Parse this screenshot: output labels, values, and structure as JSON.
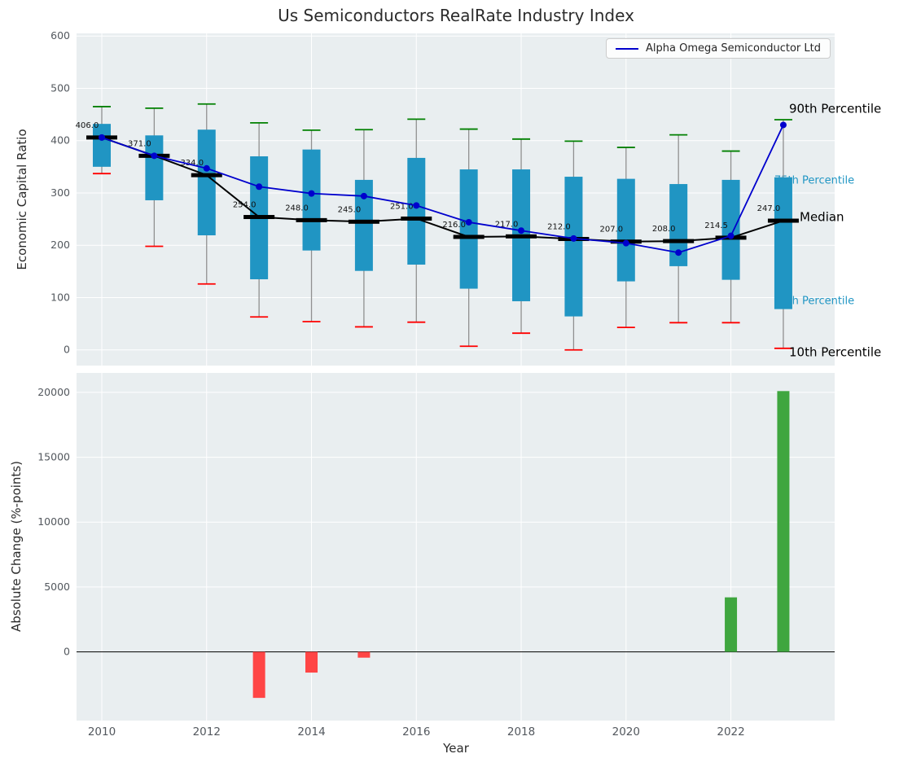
{
  "title": "Us Semiconductors RealRate Industry Index",
  "legend": {
    "label": "Alpha Omega Semiconductor Ltd"
  },
  "colors": {
    "company_line": "#0000cd",
    "box_fill": "#2095c3",
    "median": "#000000",
    "p90_cap": "#008000",
    "p10_cap": "#ff0000",
    "whisker": "#909090",
    "axes_background": "#e9eef0",
    "grid": "#ffffff",
    "bar_positive": "#3fa63f",
    "bar_negative": "#ff4545",
    "percentile_label_teal": "#2196c4",
    "tick_label": "#53585e",
    "zero_line": "#1a1a1a"
  },
  "chart_data": [
    {
      "type": "boxplot+line",
      "title": "Us Semiconductors RealRate Industry Index",
      "ylabel": "Economic Capital Ratio",
      "ylim": [
        -30,
        605
      ],
      "yticks": [
        0,
        100,
        200,
        300,
        400,
        500,
        600
      ],
      "xticks": [
        2010,
        2012,
        2014,
        2016,
        2018,
        2020,
        2022
      ],
      "grid": true,
      "legend_position": "upper right",
      "years": [
        2010,
        2011,
        2012,
        2013,
        2014,
        2015,
        2016,
        2017,
        2018,
        2019,
        2020,
        2021,
        2022,
        2023
      ],
      "p90": [
        465,
        462,
        470,
        434,
        420,
        421,
        441,
        422,
        403,
        399,
        387,
        411,
        380,
        440
      ],
      "p75": [
        432,
        410,
        421,
        370,
        383,
        325,
        367,
        345,
        345,
        331,
        327,
        317,
        325,
        330
      ],
      "median": [
        406,
        371,
        334,
        254,
        248,
        245,
        251,
        216,
        217,
        212,
        207,
        208,
        214.5,
        247
      ],
      "median_labels": [
        "406.0",
        "371.0",
        "334.0",
        "254.0",
        "248.0",
        "245.0",
        "251.0",
        "216.0",
        "217.0",
        "212.0",
        "207.0",
        "208.0",
        "214.5",
        "247.0"
      ],
      "p25": [
        350,
        286,
        219,
        135,
        190,
        151,
        163,
        117,
        93,
        64,
        131,
        160,
        134,
        78
      ],
      "p10": [
        337,
        198,
        126,
        63,
        54,
        44,
        53,
        7,
        32,
        0,
        43,
        52,
        52,
        3
      ],
      "series": [
        {
          "name": "Alpha Omega Semiconductor Ltd",
          "values": [
            406,
            371,
            347,
            312,
            299,
            294,
            276,
            244,
            228,
            213,
            204,
            186,
            218,
            430
          ]
        }
      ],
      "annotations": [
        {
          "text": "90th Percentile",
          "y": 460,
          "color": "#000000",
          "layer": "front"
        },
        {
          "text": "75th Percentile",
          "y": 323,
          "color": "#2196c4",
          "layer": "back"
        },
        {
          "text": "Median",
          "y": 253,
          "color": "#000000",
          "layer": "front"
        },
        {
          "text": "25th Percentile",
          "y": 93,
          "color": "#2196c4",
          "layer": "back"
        },
        {
          "text": "10th Percentile",
          "y": -5,
          "color": "#000000",
          "layer": "front"
        }
      ]
    },
    {
      "type": "bar",
      "ylabel": "Absolute Change (%-points)",
      "xlabel": "Year",
      "ylim": [
        -5300,
        21500
      ],
      "yticks": [
        0,
        5000,
        10000,
        15000,
        20000
      ],
      "xticks": [
        2010,
        2012,
        2014,
        2016,
        2018,
        2020,
        2022
      ],
      "grid": true,
      "years": [
        2010,
        2011,
        2012,
        2013,
        2014,
        2015,
        2016,
        2017,
        2018,
        2019,
        2020,
        2021,
        2022,
        2023
      ],
      "values": [
        null,
        null,
        null,
        -3550,
        -1600,
        -450,
        null,
        null,
        null,
        null,
        null,
        null,
        4200,
        20100
      ]
    }
  ]
}
